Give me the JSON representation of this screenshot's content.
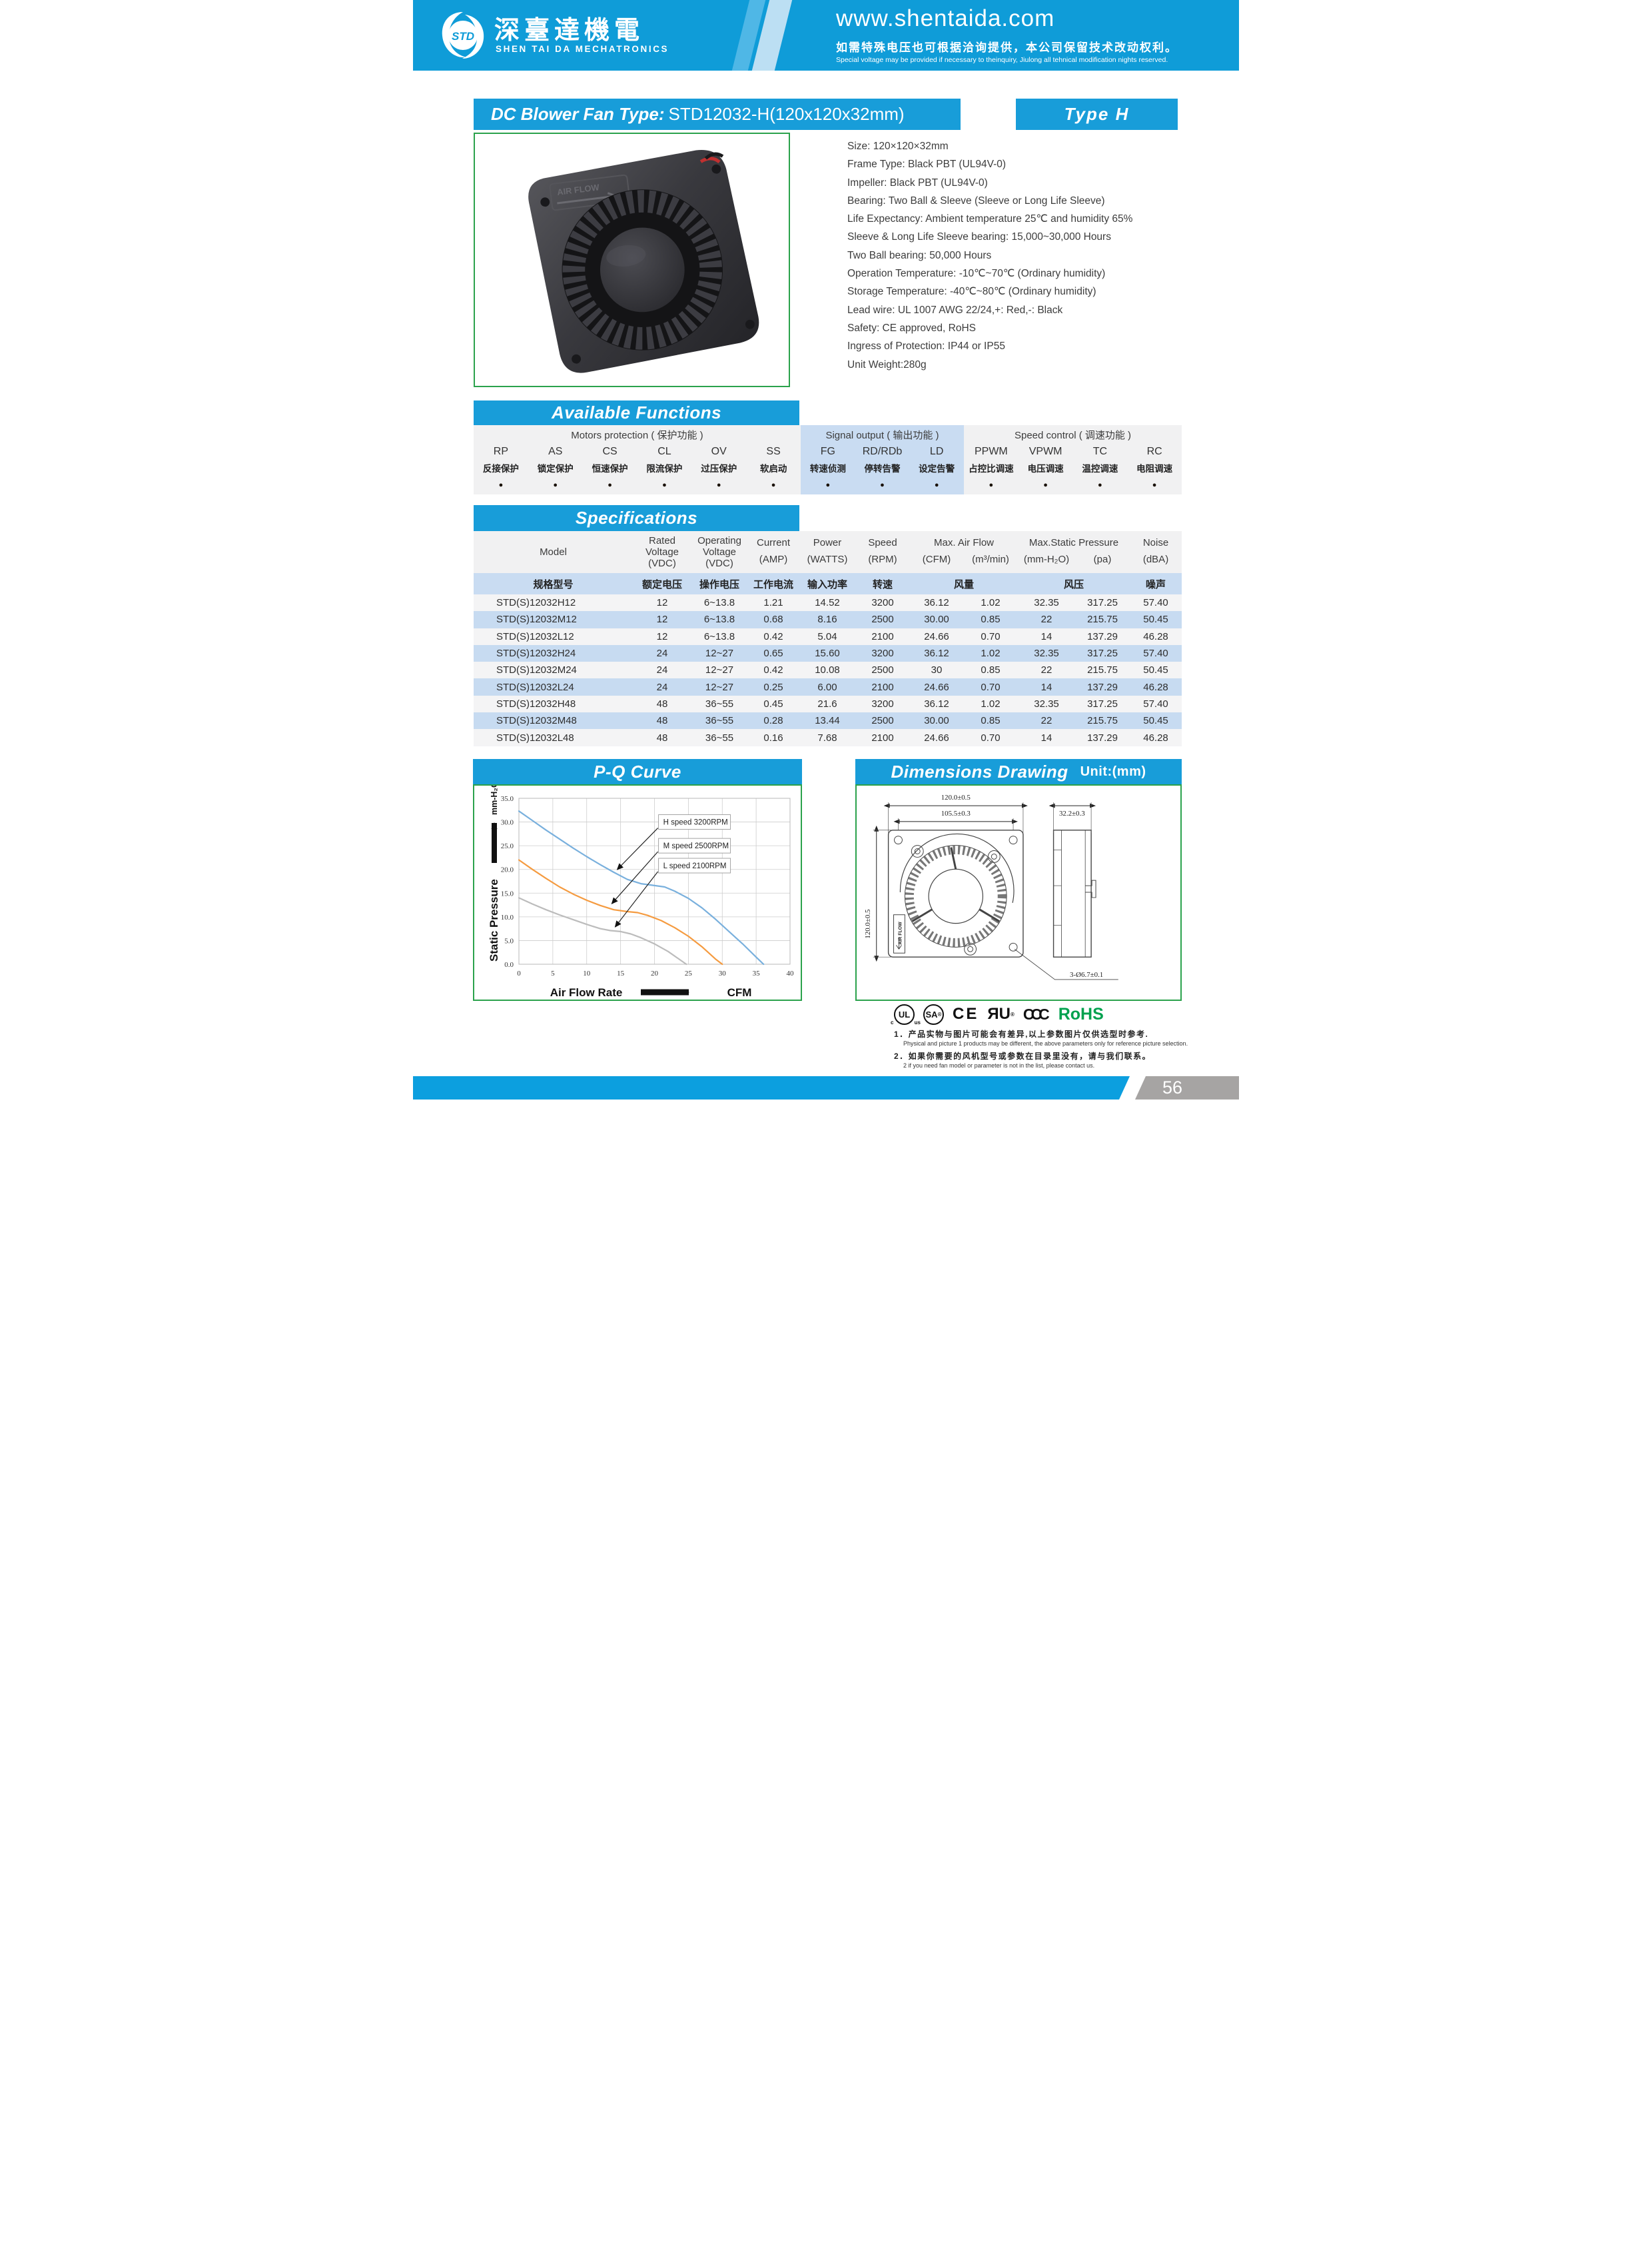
{
  "header": {
    "logo_text": "STD",
    "company_zh": "深臺達機電",
    "company_en": "SHEN TAI DA MECHATRONICS",
    "website": "www.shentaida.com",
    "tagline_zh": "如需特殊电压也可根据洽询提供，本公司保留技术改动权利。",
    "tagline_en": "Special voltage may be provided if necessary to theinquiry, Jiulong all tehnical modification nights reserved."
  },
  "title_bar": {
    "label": "DC Blower Fan  Type:",
    "model": "STD12032-H(120x120x32mm)",
    "type_badge": "Type H"
  },
  "features": [
    "Size: 120×120×32mm",
    "Frame Type: Black PBT (UL94V-0)",
    "Impeller: Black PBT (UL94V-0)",
    "Bearing: Two Ball & Sleeve (Sleeve or Long Life Sleeve)",
    "Life Expectancy: Ambient temperature 25℃ and humidity 65%",
    "Sleeve & Long Life Sleeve bearing: 15,000~30,000 Hours",
    "Two Ball bearing: 50,000 Hours",
    "Operation Temperature: -10℃~70℃ (Ordinary humidity)",
    "Storage Temperature: -40℃~80℃ (Ordinary humidity)",
    "Lead wire: UL 1007 AWG 22/24,+: Red,-: Black",
    "Safety: CE approved, RoHS",
    "Ingress of Protection: IP44 or IP55",
    "Unit Weight:280g"
  ],
  "available_functions": {
    "title": "Available Functions",
    "dot": "●",
    "groups": [
      {
        "id": "motors",
        "title": "Motors protection ( 保护功能 )",
        "items": [
          {
            "code": "RP",
            "zh": "反接保护"
          },
          {
            "code": "AS",
            "zh": "锁定保护"
          },
          {
            "code": "CS",
            "zh": "恒速保护"
          },
          {
            "code": "CL",
            "zh": "限流保护"
          },
          {
            "code": "OV",
            "zh": "过压保护"
          },
          {
            "code": "SS",
            "zh": "软启动"
          }
        ]
      },
      {
        "id": "signal",
        "title": "Signal output ( 输出功能 )",
        "items": [
          {
            "code": "FG",
            "zh": "转速侦测"
          },
          {
            "code": "RD/RDb",
            "zh": "停转告警"
          },
          {
            "code": "LD",
            "zh": "设定告警"
          }
        ]
      },
      {
        "id": "speed",
        "title": "Speed control ( 调速功能 )",
        "items": [
          {
            "code": "PPWM",
            "zh": "占控比调速"
          },
          {
            "code": "VPWM",
            "zh": "电压调速"
          },
          {
            "code": "TC",
            "zh": "温控调速"
          },
          {
            "code": "RC",
            "zh": "电阻调速"
          }
        ]
      }
    ]
  },
  "specifications": {
    "title": "Specifications",
    "header": {
      "model": "Model",
      "rated": "Rated\nVoltage\n(VDC)",
      "operating": "Operating\nVoltage\n(VDC)",
      "current": "Current",
      "current_unit": "(AMP)",
      "power": "Power",
      "power_unit": "(WATTS)",
      "speed": "Speed",
      "speed_unit": "(RPM)",
      "airflow": "Max. Air Flow",
      "airflow_units": [
        "(CFM)",
        "(m³/min)"
      ],
      "pressure": "Max.Static Pressure",
      "pressure_units": [
        "(mm-H₂O)",
        "(pa)"
      ],
      "noise": "Noise",
      "noise_unit": "(dBA)"
    },
    "header_zh": [
      "规格型号",
      "额定电压",
      "操作电压",
      "工作电流",
      "输入功率",
      "转速",
      "风量",
      "风压",
      "噪声"
    ],
    "rows": [
      [
        "STD(S)12032H12",
        "12",
        "6~13.8",
        "1.21",
        "14.52",
        "3200",
        "36.12",
        "1.02",
        "32.35",
        "317.25",
        "57.40"
      ],
      [
        "STD(S)12032M12",
        "12",
        "6~13.8",
        "0.68",
        "8.16",
        "2500",
        "30.00",
        "0.85",
        "22",
        "215.75",
        "50.45"
      ],
      [
        "STD(S)12032L12",
        "12",
        "6~13.8",
        "0.42",
        "5.04",
        "2100",
        "24.66",
        "0.70",
        "14",
        "137.29",
        "46.28"
      ],
      [
        "STD(S)12032H24",
        "24",
        "12~27",
        "0.65",
        "15.60",
        "3200",
        "36.12",
        "1.02",
        "32.35",
        "317.25",
        "57.40"
      ],
      [
        "STD(S)12032M24",
        "24",
        "12~27",
        "0.42",
        "10.08",
        "2500",
        "30",
        "0.85",
        "22",
        "215.75",
        "50.45"
      ],
      [
        "STD(S)12032L24",
        "24",
        "12~27",
        "0.25",
        "6.00",
        "2100",
        "24.66",
        "0.70",
        "14",
        "137.29",
        "46.28"
      ],
      [
        "STD(S)12032H48",
        "48",
        "36~55",
        "0.45",
        "21.6",
        "3200",
        "36.12",
        "1.02",
        "32.35",
        "317.25",
        "57.40"
      ],
      [
        "STD(S)12032M48",
        "48",
        "36~55",
        "0.28",
        "13.44",
        "2500",
        "30.00",
        "0.85",
        "22",
        "215.75",
        "50.45"
      ],
      [
        "STD(S)12032L48",
        "48",
        "36~55",
        "0.16",
        "7.68",
        "2100",
        "24.66",
        "0.70",
        "14",
        "137.29",
        "46.28"
      ]
    ]
  },
  "chart_data": {
    "type": "line",
    "title": "P-Q Curve",
    "xlabel": "Air  Flow  Rate",
    "xunit": "CFM",
    "ylabel": "Static  Pressure",
    "yunit": "mm-H₂O",
    "xlim": [
      0,
      40
    ],
    "ylim": [
      0,
      35
    ],
    "xticks": [
      "0",
      "5",
      "10",
      "15",
      "20",
      "25",
      "30",
      "35",
      "40"
    ],
    "yticks": [
      "0.0",
      "5.0",
      "10.0",
      "15.0",
      "20.0",
      "25.0",
      "30.0",
      "35.0"
    ],
    "grid": true,
    "legend_position": "inline-annotations",
    "series": [
      {
        "name": "H speed 3200RPM",
        "color": "#79B0DD",
        "points": [
          [
            0,
            32.3
          ],
          [
            2,
            30.3
          ],
          [
            4,
            28.3
          ],
          [
            6,
            26.4
          ],
          [
            8,
            24.5
          ],
          [
            10,
            22.7
          ],
          [
            12,
            21.0
          ],
          [
            14,
            19.4
          ],
          [
            16,
            17.9
          ],
          [
            18,
            17.0
          ],
          [
            20,
            16.6
          ],
          [
            21.5,
            16.3
          ],
          [
            23,
            15.4
          ],
          [
            25,
            13.9
          ],
          [
            27,
            11.9
          ],
          [
            29,
            9.5
          ],
          [
            31,
            6.9
          ],
          [
            33,
            4.3
          ],
          [
            35,
            1.5
          ],
          [
            36.1,
            0
          ]
        ]
      },
      {
        "name": "M speed 2500RPM",
        "color": "#F59B40",
        "points": [
          [
            0,
            22.0
          ],
          [
            2,
            20.0
          ],
          [
            4,
            18.1
          ],
          [
            6,
            16.3
          ],
          [
            8,
            14.8
          ],
          [
            10,
            13.5
          ],
          [
            12,
            12.4
          ],
          [
            14,
            11.5
          ],
          [
            16,
            11.1
          ],
          [
            17.5,
            10.9
          ],
          [
            19,
            10.3
          ],
          [
            21,
            9.2
          ],
          [
            23,
            7.7
          ],
          [
            25,
            5.9
          ],
          [
            27,
            3.7
          ],
          [
            29,
            1.1
          ],
          [
            30,
            0
          ]
        ]
      },
      {
        "name": "L speed 2100RPM",
        "color": "#BCBCBC",
        "points": [
          [
            0,
            14.0
          ],
          [
            2,
            12.7
          ],
          [
            4,
            11.5
          ],
          [
            6,
            10.4
          ],
          [
            8,
            9.4
          ],
          [
            10,
            8.4
          ],
          [
            12,
            7.5
          ],
          [
            13.5,
            7.1
          ],
          [
            15,
            6.9
          ],
          [
            16.5,
            6.4
          ],
          [
            18,
            5.6
          ],
          [
            20,
            4.3
          ],
          [
            22,
            2.7
          ],
          [
            24,
            0.7
          ],
          [
            24.7,
            0
          ]
        ]
      }
    ],
    "annotations": [
      {
        "label": "H speed 3200RPM",
        "box_xy": [
          20.6,
          30.0
        ],
        "target": [
          14.2,
          19.4
        ]
      },
      {
        "label": "M speed 2500RPM",
        "box_xy": [
          20.6,
          25.0
        ],
        "target": [
          13.4,
          12.2
        ]
      },
      {
        "label": "L speed 2100RPM",
        "box_xy": [
          20.6,
          20.8
        ],
        "target": [
          13.9,
          7.3
        ]
      }
    ]
  },
  "dimensions": {
    "title": "Dimensions Drawing",
    "unit": "Unit:(mm)",
    "outer_width": "120.0±0.5",
    "mount_width": "105.5±0.3",
    "depth": "32.2±0.3",
    "outer_height": "120.0±0.5",
    "holes": "3-Ø6.7±0.1",
    "airflow": "AIR FLOW"
  },
  "certifications": {
    "cul": {
      "main": "UL",
      "left": "c",
      "right": "us",
      "reg": "®"
    },
    "csa": {
      "main": "SA",
      "reg": "®"
    },
    "ce": {
      "main": "CE"
    },
    "ulr": {
      "main": "ЯU",
      "reg": "®"
    },
    "ccc": {
      "main": "CCC"
    },
    "rohs": {
      "main": "RoHS",
      "color": "#00A14E"
    }
  },
  "footnotes": [
    {
      "zh": "1．产品实物与图片可能会有差异,以上参数图片仅供选型时参考.",
      "en": "Physical and picture 1 products may be different, the above parameters only for reference picture selection."
    },
    {
      "zh": "2．如果你需要的风机型号或参数在目录里没有，请与我们联系。",
      "en": "2 if you need fan model or parameter is not in the list, please contact us."
    }
  ],
  "page": {
    "number": "56"
  }
}
